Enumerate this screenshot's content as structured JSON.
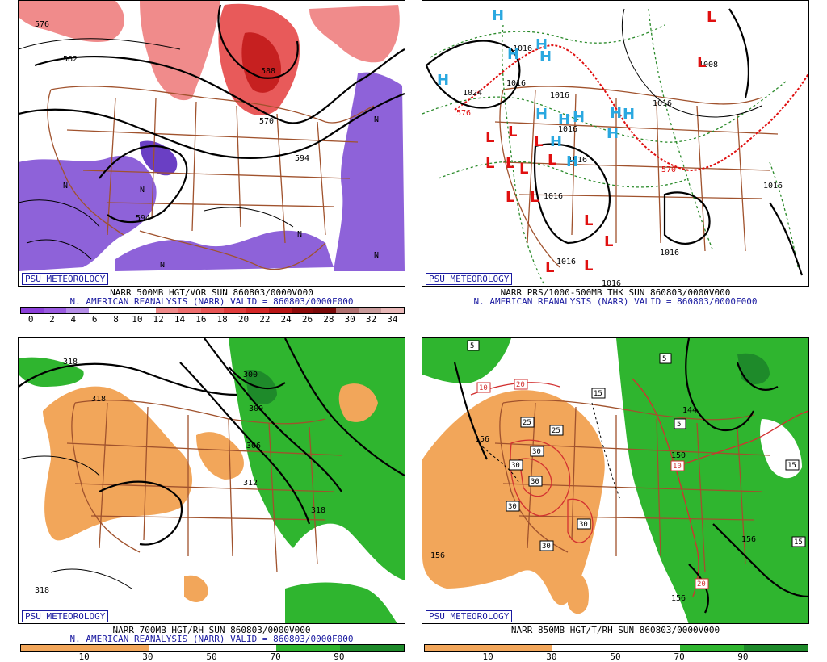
{
  "brand": "PSU METEOROLOGY",
  "panels": {
    "p1": {
      "title": "NARR 500MB HGT/VOR SUN 860803/0000V000",
      "subtitle": "N. AMERICAN REANALYSIS (NARR) VALID = 860803/0000F000",
      "colorbar_labels": [
        "0",
        "2",
        "4",
        "6",
        "8",
        "10",
        "12",
        "14",
        "16",
        "18",
        "20",
        "22",
        "24",
        "26",
        "28",
        "30",
        "32",
        "34"
      ],
      "colorbar_colors": [
        "#8b3fd9",
        "#9a5be0",
        "#b58ee8",
        "#ffffff",
        "#ffffff",
        "#ffffff",
        "#f08b8b",
        "#ee6e6e",
        "#e85555",
        "#e03c3c",
        "#d42626",
        "#b81414",
        "#8e0a0a",
        "#7a0808",
        "#b07070",
        "#c89a9a",
        "#e8b8b8"
      ],
      "contour_labels": [
        "576",
        "582",
        "588",
        "570",
        "594",
        "594",
        "N",
        "N",
        "N",
        "N",
        "N",
        "N"
      ]
    },
    "p2": {
      "title": "NARR PRS/1000-500MB THK SUN 860803/0000V000",
      "subtitle": "N. AMERICAN REANALYSIS (NARR) VALID = 860803/0000F000",
      "isobar_labels": [
        "1016",
        "1016",
        "1016",
        "1016",
        "1016",
        "1008",
        "1016",
        "1016",
        "1016",
        "1016",
        "1016",
        "1016",
        "1024"
      ],
      "thickness_labels": [
        "576",
        "570"
      ],
      "high_symbol": "H",
      "low_symbol": "L"
    },
    "p3": {
      "title": "NARR 700MB HGT/RH SUN 860803/0000V000",
      "subtitle": "N. AMERICAN REANALYSIS (NARR) VALID = 860803/0000F000",
      "colorbar_labels": [
        "10",
        "30",
        "50",
        "70",
        "90"
      ],
      "contour_labels": [
        "318",
        "318",
        "300",
        "306",
        "312",
        "318",
        "318",
        "300"
      ]
    },
    "p4": {
      "title": "NARR 850MB HGT/T/RH SUN 860803/0000V000",
      "colorbar_labels": [
        "10",
        "30",
        "50",
        "70",
        "90"
      ],
      "height_labels": [
        "156",
        "144",
        "150",
        "156",
        "156",
        "156"
      ],
      "temp_labels": [
        "5",
        "5",
        "15",
        "25",
        "25",
        "30",
        "30",
        "30",
        "30",
        "30",
        "30",
        "5",
        "10",
        "20",
        "10",
        "20",
        "15",
        "15"
      ]
    }
  },
  "colors": {
    "border": "#a0522d",
    "rh_dry": "#f2a65a",
    "rh_moist": "#2fb52f",
    "vor_neg": "#8e62d9",
    "vor_pos": "#e85a5a",
    "high": "#2aa8e0",
    "low": "#e01010",
    "thickness": "#2a8a2a"
  }
}
